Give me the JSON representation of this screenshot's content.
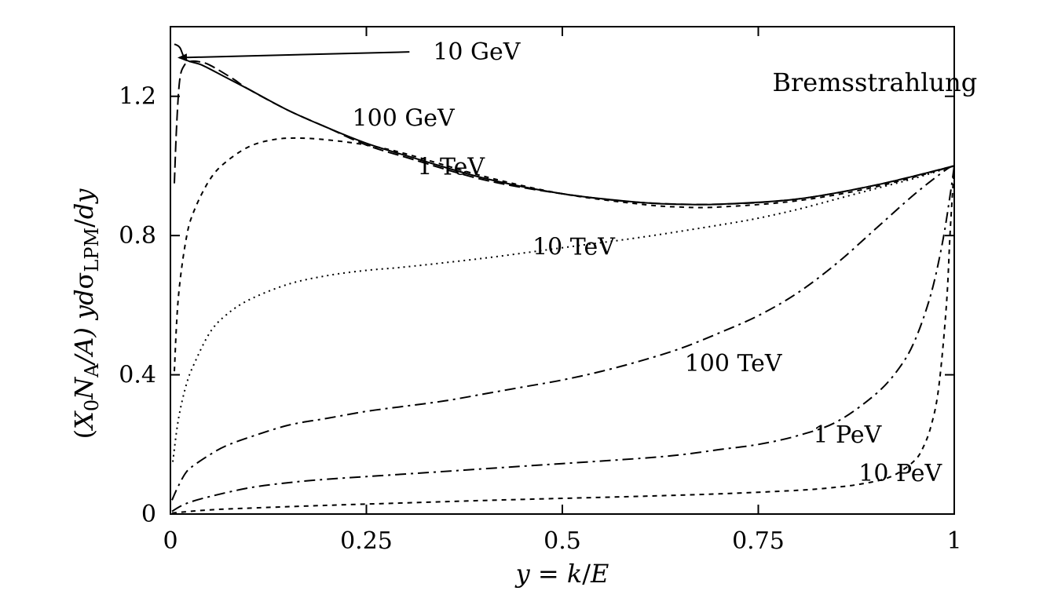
{
  "chart_data": {
    "type": "line",
    "title": "Bremsstrahlung",
    "xlabel": "y = k/E",
    "ylabel": "(X0NA/A) ydσLPM/dy",
    "xlabel_parts": {
      "y": "y",
      "eq": " = ",
      "k": "k",
      "slash": "/",
      "E": "E"
    },
    "ylabel_parts": {
      "open": "(",
      "X": "X",
      "X_sub": "0",
      "N": "N",
      "N_sub": "A",
      "slashA": "/A) ",
      "y": "y",
      "d": "d",
      "sigma": "σ",
      "sigma_sub": "LPM",
      "slash": "/",
      "dy": "dy"
    },
    "xlim": [
      0,
      1
    ],
    "ylim": [
      0,
      1.4
    ],
    "x_ticks": [
      0,
      0.25,
      0.5,
      0.75,
      1
    ],
    "x_tick_labels": [
      "0",
      "0.25",
      "0.5",
      "0.75",
      "1"
    ],
    "y_ticks": [
      0,
      0.4,
      0.8,
      1.2
    ],
    "y_tick_labels": [
      "0",
      "0.4",
      "0.8",
      "1.2"
    ],
    "grid": false,
    "series": [
      {
        "name": "10 GeV",
        "dash": "solid",
        "x": [
          0.005,
          0.012,
          0.02,
          0.04,
          0.07,
          0.1,
          0.15,
          0.2,
          0.25,
          0.3,
          0.4,
          0.5,
          0.6,
          0.65,
          0.7,
          0.8,
          0.9,
          1.0
        ],
        "y": [
          1.35,
          1.34,
          1.305,
          1.29,
          1.255,
          1.22,
          1.16,
          1.11,
          1.065,
          1.03,
          0.965,
          0.92,
          0.895,
          0.89,
          0.89,
          0.905,
          0.945,
          1.0
        ]
      },
      {
        "name": "100 GeV",
        "dash": "long",
        "x": [
          0.005,
          0.008,
          0.012,
          0.018,
          0.025,
          0.035,
          0.05,
          0.08,
          0.1,
          0.15,
          0.2,
          0.25,
          0.3,
          0.4,
          0.5,
          0.6,
          0.7,
          0.8,
          0.9,
          1.0
        ],
        "y": [
          0.95,
          1.12,
          1.25,
          1.29,
          1.3,
          1.3,
          1.29,
          1.25,
          1.22,
          1.16,
          1.11,
          1.06,
          1.025,
          0.96,
          0.92,
          0.895,
          0.89,
          0.905,
          0.945,
          1.0
        ]
      },
      {
        "name": "1 TeV",
        "dash": "short",
        "x": [
          0.005,
          0.01,
          0.02,
          0.03,
          0.05,
          0.07,
          0.1,
          0.13,
          0.16,
          0.2,
          0.25,
          0.3,
          0.4,
          0.5,
          0.6,
          0.65,
          0.7,
          0.8,
          0.9,
          1.0
        ],
        "y": [
          0.41,
          0.62,
          0.79,
          0.87,
          0.96,
          1.01,
          1.055,
          1.075,
          1.08,
          1.075,
          1.06,
          1.035,
          0.97,
          0.92,
          0.89,
          0.882,
          0.882,
          0.9,
          0.94,
          1.0
        ]
      },
      {
        "name": "10 TeV",
        "dash": "dotted",
        "x": [
          0.003,
          0.01,
          0.02,
          0.03,
          0.05,
          0.07,
          0.1,
          0.15,
          0.2,
          0.25,
          0.3,
          0.4,
          0.5,
          0.6,
          0.7,
          0.75,
          0.8,
          0.85,
          0.9,
          0.95,
          1.0
        ],
        "y": [
          0.15,
          0.27,
          0.37,
          0.43,
          0.52,
          0.57,
          0.615,
          0.66,
          0.685,
          0.7,
          0.71,
          0.735,
          0.765,
          0.795,
          0.83,
          0.85,
          0.875,
          0.905,
          0.935,
          0.965,
          1.0
        ]
      },
      {
        "name": "100 TeV",
        "dash": "dashdot",
        "x": [
          0.002,
          0.01,
          0.02,
          0.03,
          0.05,
          0.07,
          0.1,
          0.15,
          0.2,
          0.25,
          0.3,
          0.35,
          0.4,
          0.45,
          0.5,
          0.55,
          0.6,
          0.65,
          0.7,
          0.75,
          0.8,
          0.85,
          0.9,
          0.95,
          0.99,
          1.0
        ],
        "y": [
          0.04,
          0.08,
          0.12,
          0.14,
          0.17,
          0.195,
          0.22,
          0.255,
          0.275,
          0.295,
          0.31,
          0.325,
          0.345,
          0.365,
          0.385,
          0.41,
          0.44,
          0.475,
          0.52,
          0.57,
          0.635,
          0.72,
          0.82,
          0.92,
          0.99,
          1.0
        ]
      },
      {
        "name": "1 PeV",
        "dash": "dashdot",
        "x": [
          0.002,
          0.02,
          0.05,
          0.1,
          0.15,
          0.2,
          0.3,
          0.4,
          0.5,
          0.6,
          0.65,
          0.7,
          0.75,
          0.8,
          0.85,
          0.9,
          0.93,
          0.95,
          0.97,
          0.985,
          0.995,
          1.0
        ],
        "y": [
          0.008,
          0.03,
          0.05,
          0.075,
          0.09,
          0.1,
          0.115,
          0.13,
          0.145,
          0.16,
          0.17,
          0.185,
          0.2,
          0.225,
          0.265,
          0.345,
          0.42,
          0.5,
          0.63,
          0.78,
          0.92,
          1.0
        ]
      },
      {
        "name": "10 PeV",
        "dash": "short",
        "x": [
          0.002,
          0.05,
          0.1,
          0.2,
          0.3,
          0.4,
          0.5,
          0.6,
          0.7,
          0.8,
          0.85,
          0.88,
          0.91,
          0.93,
          0.95,
          0.96,
          0.97,
          0.98,
          0.99,
          0.995,
          1.0
        ],
        "y": [
          0.003,
          0.012,
          0.017,
          0.025,
          0.032,
          0.039,
          0.045,
          0.051,
          0.058,
          0.068,
          0.077,
          0.086,
          0.1,
          0.12,
          0.155,
          0.19,
          0.25,
          0.36,
          0.6,
          0.82,
          1.0
        ]
      }
    ],
    "annotations": [
      {
        "text": "10 GeV",
        "x": 0.335,
        "y": 1.305,
        "arrow_to": [
          0.005,
          1.32
        ]
      },
      {
        "text": "100 GeV",
        "x": 0.232,
        "y": 1.115
      },
      {
        "text": "1 TeV",
        "x": 0.315,
        "y": 0.975
      },
      {
        "text": "10 TeV",
        "x": 0.462,
        "y": 0.745
      },
      {
        "text": "100 TeV",
        "x": 0.656,
        "y": 0.41
      },
      {
        "text": "1 PeV",
        "x": 0.82,
        "y": 0.205
      },
      {
        "text": "10 PeV",
        "x": 0.878,
        "y": 0.095
      },
      {
        "text": "Bremsstrahlung",
        "x": 0.768,
        "y": 1.215
      }
    ]
  }
}
